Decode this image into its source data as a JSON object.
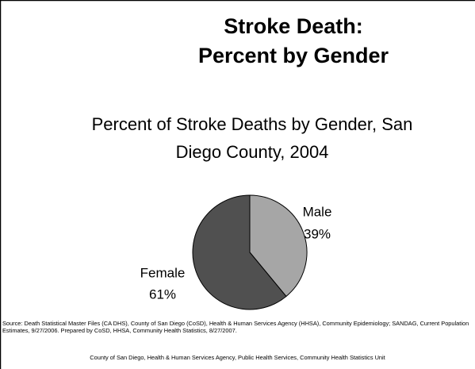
{
  "slide_title": [
    "Stroke Death:",
    "Percent by Gender"
  ],
  "chart_data": {
    "type": "pie",
    "title": [
      "Percent of Stroke Deaths by Gender, San",
      "Diego County, 2004"
    ],
    "categories": [
      "Male",
      "Female"
    ],
    "values": [
      39,
      61
    ],
    "value_labels": [
      "39%",
      "61%"
    ],
    "colors": [
      "#a6a6a6",
      "#505050"
    ]
  },
  "source": "Source: Death Statistical Master Files (CA DHS), County of San Diego (CoSD), Health & Human Services Agency (HHSA), Community Epidemiology; SANDAG, Current Population Estimates, 9/27/2006. Prepared by CoSD, HHSA, Community Health Statistics, 8/27/2007.",
  "footer": "County of San Diego, Health & Human Services Agency, Public Health Services, Community Health Statistics Unit"
}
